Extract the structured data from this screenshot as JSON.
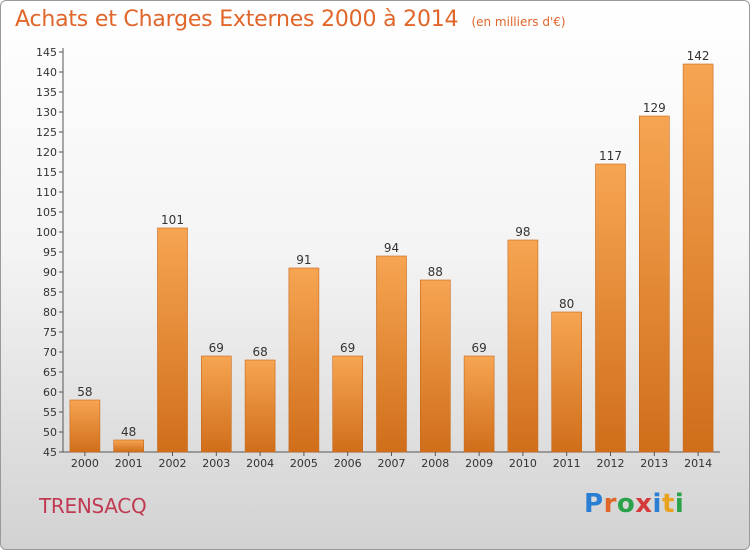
{
  "title": "Achats et Charges Externes 2000 à 2014",
  "subtitle": "(en milliers d'€)",
  "commune": "TRENSACQ",
  "logo": {
    "letters": [
      "P",
      "r",
      "o",
      "x",
      "i",
      "t",
      "i"
    ],
    "colors": [
      "#2a7fd4",
      "#e0662a",
      "#2aa24a",
      "#d63a3a",
      "#2a7fd4",
      "#e8a21c",
      "#2aa24a"
    ]
  },
  "colors": {
    "bar_top": "#f6a552",
    "bar_bottom": "#d06e1a",
    "title": "#e0662a",
    "commune": "#bf3a52"
  },
  "chart_data": {
    "type": "bar",
    "title": "Achats et Charges Externes 2000 à 2014",
    "subtitle": "(en milliers d'€)",
    "categories": [
      "2000",
      "2001",
      "2002",
      "2003",
      "2004",
      "2005",
      "2006",
      "2007",
      "2008",
      "2009",
      "2010",
      "2011",
      "2012",
      "2013",
      "2014"
    ],
    "values": [
      58,
      48,
      101,
      69,
      68,
      91,
      69,
      94,
      88,
      69,
      98,
      80,
      117,
      129,
      142
    ],
    "xlabel": "",
    "ylabel": "",
    "ylim": [
      45,
      145
    ],
    "ytick_step": 5,
    "grid": false,
    "data_labels": true
  }
}
